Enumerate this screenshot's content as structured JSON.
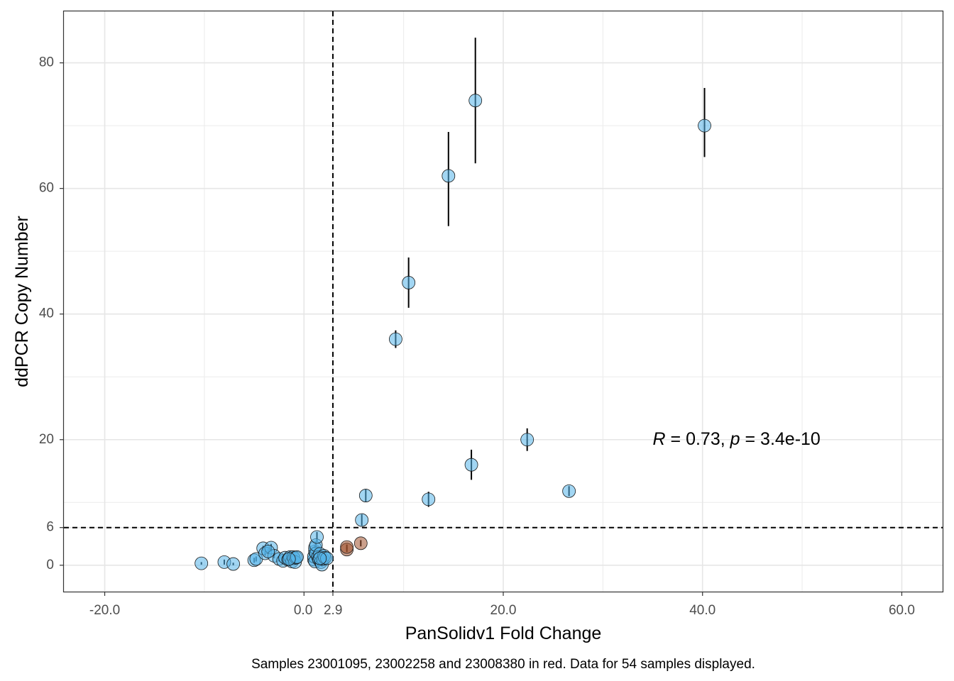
{
  "chart_data": {
    "type": "scatter",
    "xlabel": "PanSolidv1 Fold Change",
    "ylabel": "ddPCR Copy Number",
    "caption": "Samples 23001095, 23002258 and 23008380 in red. Data for 54 samples displayed.",
    "annotation": {
      "r_symbol": "R",
      "r_text": " = 0.73, ",
      "p_symbol": "p",
      "p_text": " = 3.4e-10",
      "x": 35,
      "y": 20
    },
    "xlim": [
      -24.1,
      64.1
    ],
    "ylim": [
      -4.2,
      88.2
    ],
    "x_ticks": [
      {
        "value": -20,
        "label": "-20.0"
      },
      {
        "value": 0,
        "label": "0.0"
      },
      {
        "value": 2.9,
        "label": "2.9"
      },
      {
        "value": 20,
        "label": "20.0"
      },
      {
        "value": 40,
        "label": "40.0"
      },
      {
        "value": 60,
        "label": "60.0"
      }
    ],
    "x_minor_gridlines": [
      -10,
      10,
      30,
      50
    ],
    "y_ticks": [
      {
        "value": 0,
        "label": "0"
      },
      {
        "value": 6,
        "label": "6"
      },
      {
        "value": 20,
        "label": "20"
      },
      {
        "value": 40,
        "label": "40"
      },
      {
        "value": 60,
        "label": "60"
      },
      {
        "value": 80,
        "label": "80"
      }
    ],
    "y_minor_gridlines": [
      10,
      30,
      50,
      70
    ],
    "threshold_lines": {
      "x": 2.9,
      "y": 6
    },
    "grid": true,
    "colors": {
      "normal": "#56B4E9",
      "highlighted": "#A0522D",
      "error_bar": "#000000"
    },
    "series": [
      {
        "color_key": "normal",
        "points": [
          {
            "x": -10.3,
            "y": 0.3,
            "lo": 0.1,
            "hi": 0.5
          },
          {
            "x": -8.0,
            "y": 0.5,
            "lo": 0.1,
            "hi": 0.9
          },
          {
            "x": -7.1,
            "y": 0.2,
            "lo": 0.0,
            "hi": 0.4
          },
          {
            "x": -5.0,
            "y": 0.8,
            "lo": 0.4,
            "hi": 1.2
          },
          {
            "x": -4.8,
            "y": 1.0,
            "lo": 0.6,
            "hi": 1.4
          },
          {
            "x": -4.1,
            "y": 2.7,
            "lo": 2.3,
            "hi": 3.1
          },
          {
            "x": -3.9,
            "y": 1.9,
            "lo": 1.5,
            "hi": 2.3
          },
          {
            "x": -3.3,
            "y": 2.8,
            "lo": 2.2,
            "hi": 3.4
          },
          {
            "x": -3.0,
            "y": 1.5,
            "lo": 1.1,
            "hi": 1.9
          },
          {
            "x": -2.5,
            "y": 1.0,
            "lo": 0.6,
            "hi": 1.4
          },
          {
            "x": -2.1,
            "y": 0.7,
            "lo": 0.3,
            "hi": 1.1
          },
          {
            "x": -1.9,
            "y": 1.2,
            "lo": 0.8,
            "hi": 1.6
          },
          {
            "x": -1.6,
            "y": 0.9,
            "lo": 0.5,
            "hi": 1.3
          },
          {
            "x": -1.4,
            "y": 1.3,
            "lo": 0.9,
            "hi": 1.7
          },
          {
            "x": -1.2,
            "y": 0.6,
            "lo": 0.2,
            "hi": 1.0
          },
          {
            "x": -1.1,
            "y": 1.3,
            "lo": 0.9,
            "hi": 1.7
          },
          {
            "x": -1.0,
            "y": 1.1,
            "lo": 0.7,
            "hi": 1.5
          },
          {
            "x": -0.9,
            "y": 0.5,
            "lo": 0.1,
            "hi": 0.9
          },
          {
            "x": -0.8,
            "y": 1.2,
            "lo": 0.8,
            "hi": 1.6
          },
          {
            "x": -0.7,
            "y": 1.3,
            "lo": 0.9,
            "hi": 1.7
          },
          {
            "x": 1.0,
            "y": 0.9,
            "lo": 0.5,
            "hi": 1.3
          },
          {
            "x": 1.0,
            "y": 1.4,
            "lo": 1.0,
            "hi": 1.8
          },
          {
            "x": 1.1,
            "y": 0.6,
            "lo": 0.2,
            "hi": 1.0
          },
          {
            "x": 1.1,
            "y": 2.2,
            "lo": 1.8,
            "hi": 2.6
          },
          {
            "x": 1.1,
            "y": 2.8,
            "lo": 2.3,
            "hi": 3.3
          },
          {
            "x": 1.2,
            "y": 1.9,
            "lo": 1.5,
            "hi": 2.3
          },
          {
            "x": 1.2,
            "y": 3.2,
            "lo": 2.7,
            "hi": 3.7
          },
          {
            "x": 1.3,
            "y": 4.5,
            "lo": 3.7,
            "hi": 5.3
          },
          {
            "x": 1.4,
            "y": 1.3,
            "lo": 0.9,
            "hi": 1.7
          },
          {
            "x": 1.5,
            "y": 0.9,
            "lo": 0.5,
            "hi": 1.3
          },
          {
            "x": 1.6,
            "y": 1.8,
            "lo": 1.4,
            "hi": 2.2
          },
          {
            "x": 1.7,
            "y": 0.5,
            "lo": 0.1,
            "hi": 0.9
          },
          {
            "x": 1.8,
            "y": 0.1,
            "lo": -0.2,
            "hi": 0.4
          },
          {
            "x": 1.9,
            "y": 1.0,
            "lo": 0.6,
            "hi": 1.4
          },
          {
            "x": 2.0,
            "y": 1.5,
            "lo": 1.1,
            "hi": 1.9
          },
          {
            "x": 2.1,
            "y": 1.2,
            "lo": 0.8,
            "hi": 1.6
          },
          {
            "x": 2.3,
            "y": 1.1,
            "lo": 0.7,
            "hi": 1.5
          },
          {
            "x": 5.8,
            "y": 7.2,
            "lo": 6.3,
            "hi": 8.1
          },
          {
            "x": 6.2,
            "y": 11.1,
            "lo": 10.1,
            "hi": 12.1
          },
          {
            "x": 9.2,
            "y": 36.0,
            "lo": 34.6,
            "hi": 37.4
          },
          {
            "x": 10.5,
            "y": 45.0,
            "lo": 41.0,
            "hi": 49.0
          },
          {
            "x": 12.5,
            "y": 10.5,
            "lo": 9.3,
            "hi": 11.7
          },
          {
            "x": 14.5,
            "y": 62.0,
            "lo": 54.0,
            "hi": 69.0
          },
          {
            "x": 16.8,
            "y": 16.0,
            "lo": 13.6,
            "hi": 18.4
          },
          {
            "x": 17.2,
            "y": 74.0,
            "lo": 64.0,
            "hi": 84.0
          },
          {
            "x": 22.4,
            "y": 20.0,
            "lo": 18.2,
            "hi": 21.8
          },
          {
            "x": 26.6,
            "y": 11.8,
            "lo": 11.0,
            "hi": 12.6
          },
          {
            "x": 40.2,
            "y": 70.0,
            "lo": 65.0,
            "hi": 76.0
          },
          {
            "x": -3.6,
            "y": 2.2,
            "lo": 1.8,
            "hi": 2.6
          },
          {
            "x": -1.5,
            "y": 1.0,
            "lo": 0.6,
            "hi": 1.4
          },
          {
            "x": 1.6,
            "y": 1.1,
            "lo": 0.7,
            "hi": 1.5
          }
        ]
      },
      {
        "color_key": "highlighted",
        "points": [
          {
            "x": 4.3,
            "y": 2.5,
            "lo": 2.1,
            "hi": 2.9
          },
          {
            "x": 4.3,
            "y": 2.9,
            "lo": 2.5,
            "hi": 3.3
          },
          {
            "x": 5.7,
            "y": 3.5,
            "lo": 3.0,
            "hi": 4.0
          }
        ]
      }
    ]
  }
}
